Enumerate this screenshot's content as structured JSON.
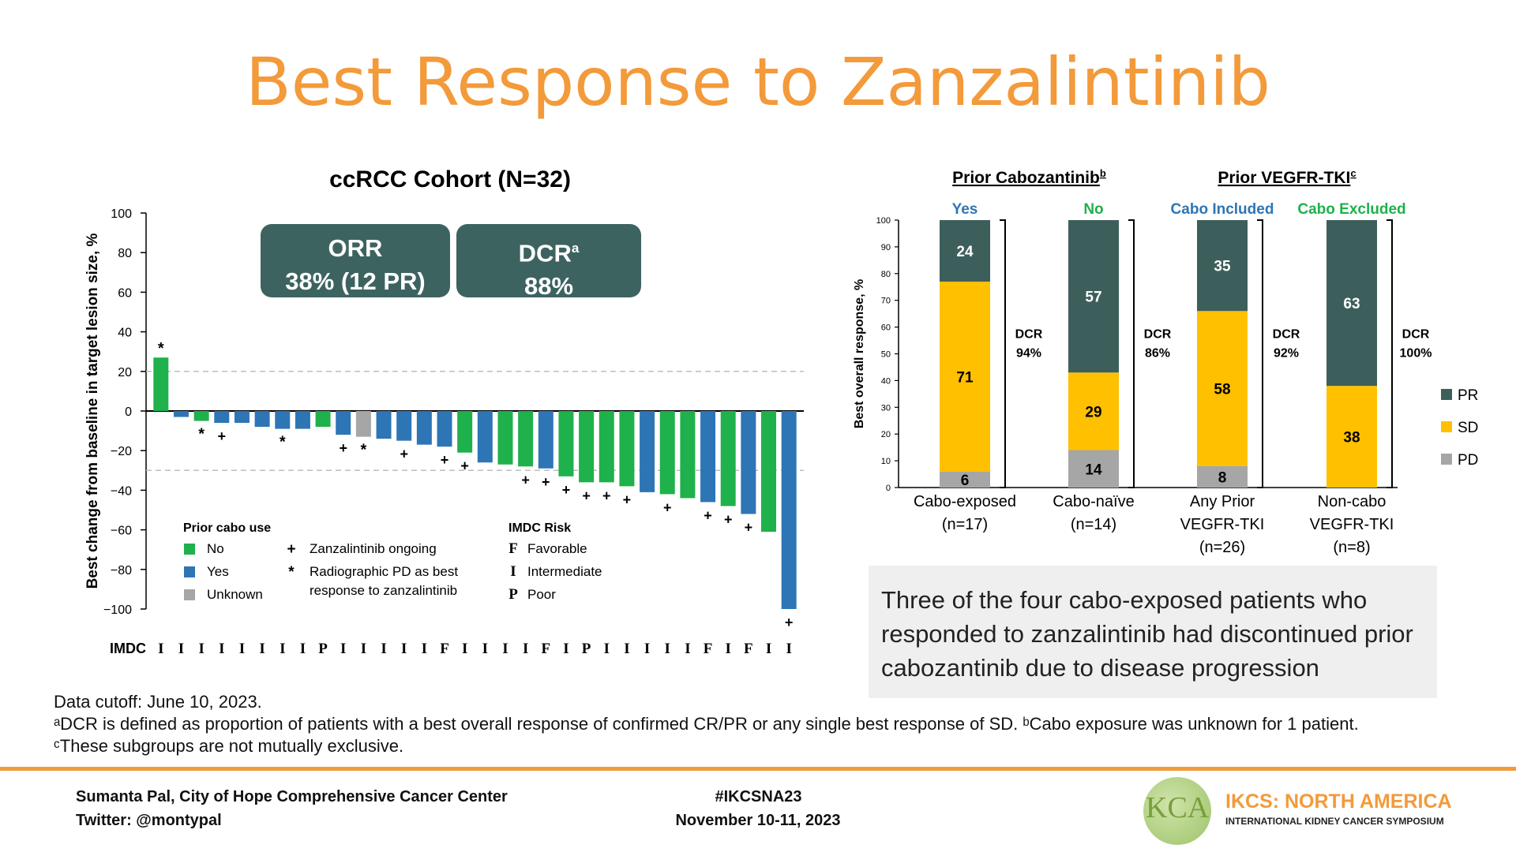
{
  "slide": {
    "title": "Best Response to Zanzalintinib",
    "footnotes": [
      "Data cutoff: June 10, 2023.",
      "ᵃDCR is defined as proportion of patients with a best overall response of confirmed CR/PR or any single best response of SD. ᵇCabo exposure was unknown for 1 patient.",
      "ᶜThese subgroups are not mutually exclusive."
    ],
    "callout": "Three of the four cabo-exposed patients who responded to zanzalintinib had discontinued prior cabozantinib due to disease progression",
    "footer": {
      "presenter": "Sumanta Pal, City of Hope Comprehensive Cancer Center",
      "twitter": "Twitter: @montypal",
      "hashtag": "#IKCSNA23",
      "dates": "November 10-11, 2023",
      "logo_mark": "KCA",
      "logo_title": "IKCS: NORTH AMERICA",
      "logo_subtitle": "INTERNATIONAL KIDNEY CANCER SYMPOSIUM"
    },
    "orr_box": {
      "title": "ORR",
      "value": "38% (12 PR)"
    },
    "dcr_box": {
      "title": "DCR",
      "sup": "a",
      "value": "88%"
    },
    "colors": {
      "orange": "#f39a3a",
      "teal": "#3d6360",
      "green": "#1fb14b",
      "blue": "#2e75b6",
      "gray": "#a6a6a6",
      "yellow": "#ffc000",
      "pr": "#3d5f5b",
      "link_blue": "#2e75b6",
      "link_green": "#1fb14b"
    }
  },
  "chart_data": [
    {
      "type": "bar",
      "title": "ccRCC Cohort (N=32)",
      "ylabel": "Best change from baseline in target lesion size, %",
      "ylim": [
        -100,
        100
      ],
      "yticks": [
        100,
        80,
        60,
        40,
        20,
        0,
        -20,
        -40,
        -60,
        -80,
        -100
      ],
      "ytick_labels": [
        "100",
        "80",
        "60",
        "40",
        "20",
        "0",
        "−20",
        "−40",
        "−60",
        "−80",
        "−100"
      ],
      "reference_lines": [
        20,
        -30
      ],
      "values": [
        27,
        -3,
        -5,
        -6,
        -6,
        -8,
        -9,
        -9,
        -8,
        -12,
        -13,
        -14,
        -15,
        -17,
        -18,
        -21,
        -26,
        -27,
        -28,
        -29,
        -33,
        -36,
        -36,
        -38,
        -41,
        -42,
        -44,
        -46,
        -48,
        -52,
        -61,
        -100
      ],
      "cabo": [
        "No",
        "Yes",
        "No",
        "Yes",
        "Yes",
        "Yes",
        "Yes",
        "Yes",
        "No",
        "Yes",
        "Unknown",
        "Yes",
        "Yes",
        "Yes",
        "Yes",
        "No",
        "Yes",
        "No",
        "No",
        "Yes",
        "No",
        "No",
        "No",
        "No",
        "Yes",
        "No",
        "No",
        "Yes",
        "No",
        "Yes",
        "No",
        "Yes"
      ],
      "markers": [
        "*",
        "",
        "*",
        "+",
        "",
        "",
        "*",
        "",
        "",
        "+",
        "*",
        "",
        "+",
        "",
        "+",
        "+",
        "",
        "",
        "+",
        "+",
        "+",
        "+",
        "+",
        "+",
        "",
        "+",
        "",
        "+",
        "+",
        "+",
        "",
        "+"
      ],
      "imdc": [
        "I",
        "I",
        "I",
        "I",
        "I",
        "I",
        "I",
        "I",
        "P",
        "I",
        "I",
        "I",
        "I",
        "I",
        "F",
        "I",
        "I",
        "I",
        "I",
        "F",
        "I",
        "P",
        "I",
        "I",
        "I",
        "I",
        "I",
        "F",
        "I",
        "F",
        "I",
        "I"
      ],
      "imdc_row_label": "IMDC",
      "legend_cabo": {
        "title": "Prior cabo use",
        "items": [
          {
            "label": "No",
            "color": "#1fb14b"
          },
          {
            "label": "Yes",
            "color": "#2e75b6"
          },
          {
            "label": "Unknown",
            "color": "#a6a6a6"
          }
        ]
      },
      "legend_symbols": [
        {
          "symbol": "+",
          "label": "Zanzalintinib ongoing"
        },
        {
          "symbol": "*",
          "label": "Radiographic PD as best",
          "label2": "response to zanzalintinib"
        }
      ],
      "legend_imdc": {
        "title": "IMDC Risk",
        "items": [
          {
            "symbol": "F",
            "label": "Favorable"
          },
          {
            "symbol": "I",
            "label": "Intermediate"
          },
          {
            "symbol": "P",
            "label": "Poor"
          }
        ]
      }
    },
    {
      "type": "bar",
      "stacked": true,
      "ylabel": "Best overall response, %",
      "ylim": [
        0,
        100
      ],
      "yticks": [
        0,
        10,
        20,
        30,
        40,
        50,
        60,
        70,
        80,
        90,
        100
      ],
      "group_headers": [
        {
          "label": "Prior Cabozantinib",
          "sup": "b",
          "span": [
            0,
            1
          ]
        },
        {
          "label": "Prior VEGFR-TKI",
          "sup": "c",
          "span": [
            2,
            3
          ]
        }
      ],
      "column_headers": [
        {
          "label": "Yes",
          "color": "#2e75b6"
        },
        {
          "label": "No",
          "color": "#1fb14b"
        },
        {
          "label": "Cabo Included",
          "color": "#2e75b6"
        },
        {
          "label": "Cabo Excluded",
          "color": "#1fb14b"
        }
      ],
      "categories": [
        [
          "Cabo-exposed",
          "(n=17)"
        ],
        [
          "Cabo-naïve",
          "(n=14)"
        ],
        [
          "Any Prior",
          "VEGFR-TKI",
          "(n=26)"
        ],
        [
          "Non-cabo",
          "VEGFR-TKI",
          "(n=8)"
        ]
      ],
      "series": [
        {
          "name": "PD",
          "color": "#a6a6a6",
          "values": [
            6,
            14,
            8,
            0
          ]
        },
        {
          "name": "SD",
          "color": "#ffc000",
          "values": [
            71,
            29,
            58,
            38
          ]
        },
        {
          "name": "PR",
          "color": "#3d5f5b",
          "values": [
            24,
            57,
            35,
            63
          ]
        }
      ],
      "dcr_labels": [
        "94%",
        "86%",
        "92%",
        "100%"
      ],
      "dcr_title": "DCR",
      "legend_order": [
        "PR",
        "SD",
        "PD"
      ]
    }
  ]
}
